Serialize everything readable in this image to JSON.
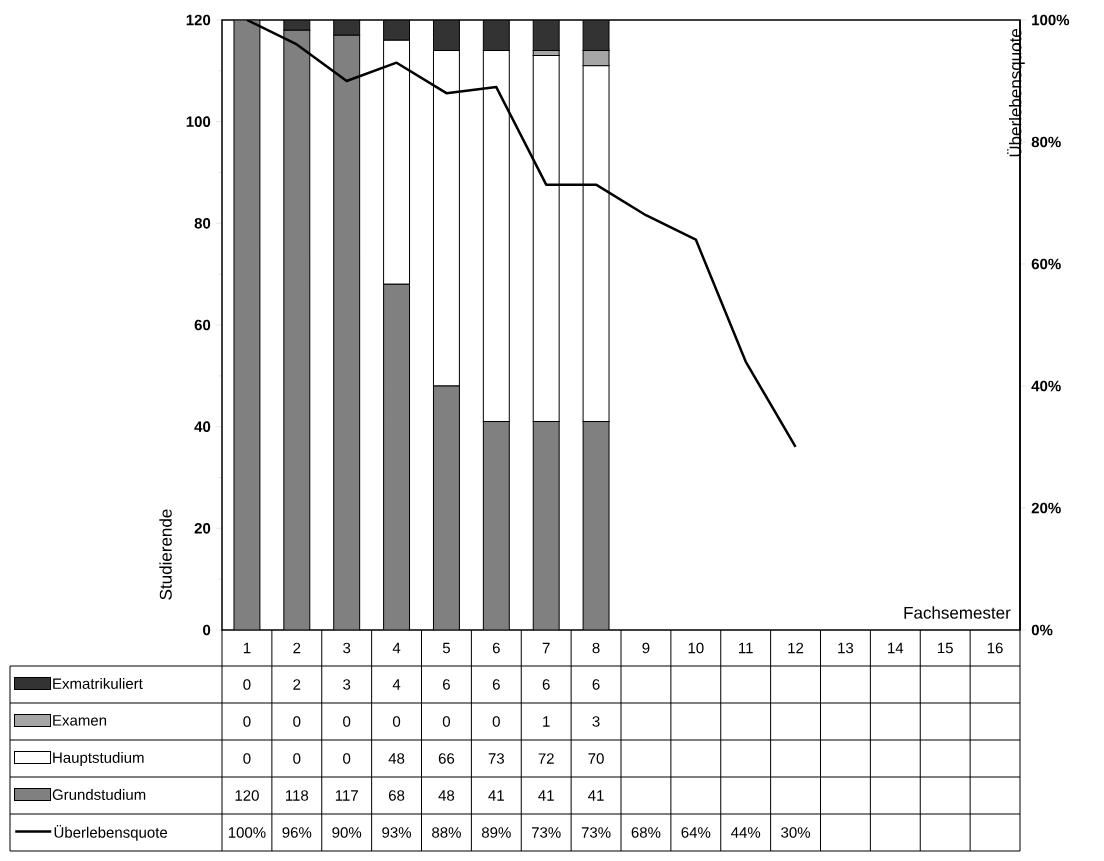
{
  "chart_data": {
    "type": "bar",
    "stacked": true,
    "xlabel": "Fachsemester",
    "ylabel": "Studierende",
    "y2label": "Überlebensquote",
    "categories": [
      "1",
      "2",
      "3",
      "4",
      "5",
      "6",
      "7",
      "8",
      "9",
      "10",
      "11",
      "12",
      "13",
      "14",
      "15",
      "16"
    ],
    "series": [
      {
        "name": "Grundstudium",
        "color": "#808080",
        "values": [
          120,
          118,
          117,
          68,
          48,
          41,
          41,
          41,
          null,
          null,
          null,
          null,
          null,
          null,
          null,
          null
        ]
      },
      {
        "name": "Hauptstudium",
        "color": "#ffffff",
        "values": [
          0,
          0,
          0,
          48,
          66,
          73,
          72,
          70,
          null,
          null,
          null,
          null,
          null,
          null,
          null,
          null
        ]
      },
      {
        "name": "Examen",
        "color": "#a6a6a6",
        "values": [
          0,
          0,
          0,
          0,
          0,
          0,
          1,
          3,
          null,
          null,
          null,
          null,
          null,
          null,
          null,
          null
        ]
      },
      {
        "name": "Exmatrikuliert",
        "color": "#333333",
        "values": [
          0,
          2,
          3,
          4,
          6,
          6,
          6,
          6,
          null,
          null,
          null,
          null,
          null,
          null,
          null,
          null
        ]
      },
      {
        "name": "Überlebensquote",
        "type": "line",
        "axis": "y2",
        "color": "#000000",
        "values": [
          100,
          96,
          90,
          93,
          88,
          89,
          73,
          73,
          68,
          64,
          44,
          30,
          null,
          null,
          null,
          null
        ],
        "value_labels": [
          "100%",
          "96%",
          "90%",
          "93%",
          "88%",
          "89%",
          "73%",
          "73%",
          "68%",
          "64%",
          "44%",
          "30%",
          null,
          null,
          null,
          null
        ]
      }
    ],
    "ylim": [
      0,
      120
    ],
    "yticks": [
      0,
      20,
      40,
      60,
      80,
      100,
      120
    ],
    "y2lim": [
      0,
      100
    ],
    "y2ticks": [
      {
        "value": 0,
        "label": "0%"
      },
      {
        "value": 20,
        "label": "20%"
      },
      {
        "value": 40,
        "label": "40%"
      },
      {
        "value": 60,
        "label": "60%"
      },
      {
        "value": 80,
        "label": "80%"
      },
      {
        "value": 100,
        "label": "100%"
      }
    ],
    "data_labels": true,
    "legend": "bottom"
  }
}
